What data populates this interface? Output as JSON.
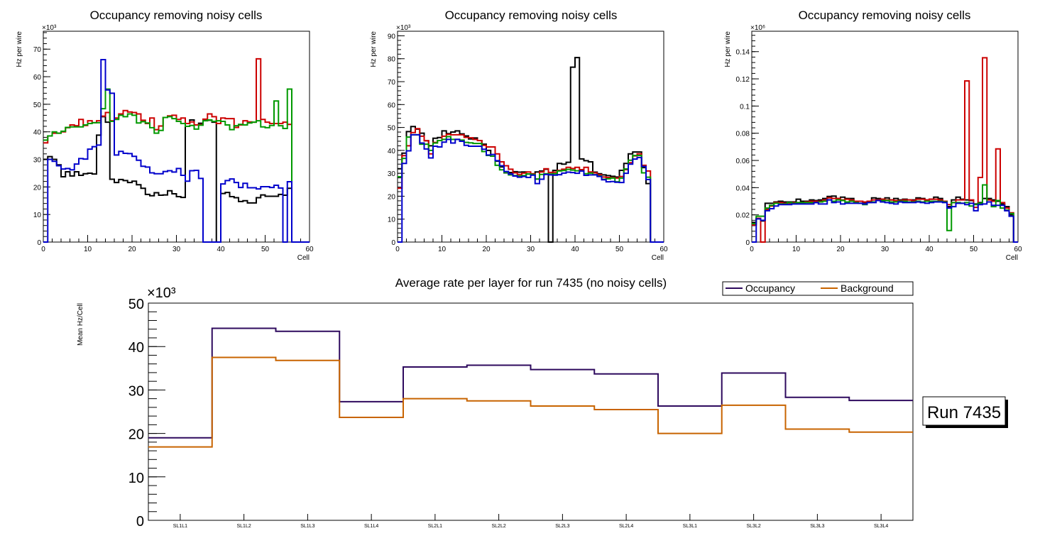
{
  "chart_data": [
    {
      "type": "histogram",
      "title": "Occupancy removing noisy cells",
      "xlabel": "Cell",
      "ylabel": "Hz per wire",
      "y_multiplier": "×10³",
      "xlim": [
        0,
        60
      ],
      "ylim": [
        0,
        76.5
      ],
      "xticks": [
        "0",
        "10",
        "20",
        "30",
        "40",
        "50",
        "60"
      ],
      "yticks": [
        "0",
        "10",
        "20",
        "30",
        "40",
        "50",
        "60",
        "70"
      ],
      "ytick_values": [
        0,
        10,
        20,
        30,
        40,
        50,
        60,
        70
      ],
      "series": [
        {
          "name": "black",
          "color": "#000000",
          "values": [
            30,
            31,
            30,
            28,
            23.7,
            25.5,
            24,
            25.5,
            24.2,
            24.8,
            25,
            24.7,
            38.8,
            45.5,
            43.5,
            22.8,
            21.6,
            22.7,
            22.3,
            21.6,
            22.1,
            20.8,
            19.5,
            17.3,
            16.8,
            17.9,
            17,
            17.1,
            18.6,
            17.5,
            16.5,
            16.2,
            43,
            44.3,
            42.5,
            43.1,
            44.1,
            44.2,
            43.5,
            0,
            17.6,
            18,
            16.5,
            16.1,
            14.7,
            15,
            14.2,
            14.2,
            16.1,
            17.1,
            16.6,
            16.6,
            16.6,
            17.3,
            17,
            19.5,
            0,
            0,
            0,
            0
          ]
        },
        {
          "name": "red",
          "color": "#cc0000",
          "values": [
            36,
            38.5,
            39.5,
            39.5,
            40,
            41.5,
            42.5,
            42.2,
            44.5,
            42.3,
            44,
            43.3,
            44,
            45.7,
            47,
            44,
            45,
            46.5,
            47.7,
            47.2,
            47,
            46.5,
            44.2,
            43,
            45,
            40.8,
            42.1,
            45.2,
            45.8,
            46,
            44.5,
            45,
            43,
            43.6,
            42.5,
            42.6,
            44.6,
            46.5,
            45.5,
            43,
            45,
            44.8,
            44.8,
            41.6,
            42.5,
            44,
            43.6,
            43.5,
            66.5,
            44.5,
            43.5,
            43,
            43,
            43,
            43.5,
            42.7,
            0,
            0,
            0,
            0
          ]
        },
        {
          "name": "green",
          "color": "#009900",
          "values": [
            37,
            38.5,
            40,
            39.5,
            40.2,
            41.6,
            41.8,
            41.8,
            41.8,
            42.5,
            43,
            43.3,
            43.3,
            48.4,
            55.5,
            43.8,
            44.5,
            46,
            45.5,
            46.5,
            46,
            43.2,
            43.7,
            43.2,
            41.5,
            39.5,
            40.5,
            45.2,
            45.5,
            44.8,
            43.8,
            43,
            42,
            42.3,
            41,
            42.4,
            44,
            44.3,
            43.8,
            44,
            43.8,
            42.5,
            40.8,
            42.2,
            42.7,
            42.5,
            43.2,
            43.5,
            44,
            41.8,
            41.5,
            42.3,
            51.2,
            42.2,
            41.2,
            55.5,
            0,
            0,
            0,
            0
          ]
        },
        {
          "name": "blue",
          "color": "#0000cc",
          "values": [
            0,
            30,
            29.3,
            27.7,
            26.5,
            26.7,
            26.2,
            28.3,
            30.3,
            30.1,
            33.7,
            34.6,
            35.2,
            66.2,
            55.2,
            54,
            31.6,
            32.9,
            32.2,
            32.1,
            31.1,
            29.7,
            27.5,
            27.2,
            25.1,
            24.8,
            24.8,
            25.6,
            25.9,
            25.4,
            26.7,
            24.2,
            22.1,
            25.9,
            26,
            23.1,
            0,
            0,
            0,
            0,
            21.1,
            22.3,
            22.9,
            21.6,
            19.8,
            21.3,
            19.7,
            19.7,
            19.3,
            20.1,
            20.1,
            19.8,
            20.6,
            19.6,
            0,
            21.9,
            0,
            0,
            0,
            0
          ]
        }
      ]
    },
    {
      "type": "histogram",
      "title": "Occupancy removing noisy cells",
      "xlabel": "Cell",
      "ylabel": "Hz per wire",
      "y_multiplier": "×10³",
      "xlim": [
        0,
        60
      ],
      "ylim": [
        0,
        92
      ],
      "xticks": [
        "0",
        "10",
        "20",
        "30",
        "40",
        "50",
        "60"
      ],
      "yticks": [
        "0",
        "10",
        "20",
        "30",
        "40",
        "50",
        "60",
        "70",
        "80",
        "90"
      ],
      "ytick_values": [
        0,
        10,
        20,
        30,
        40,
        50,
        60,
        70,
        80,
        90
      ],
      "series": [
        {
          "name": "black",
          "color": "#000000",
          "values": [
            32,
            38.8,
            48.2,
            50.4,
            49.3,
            47.5,
            44.2,
            42,
            45.3,
            45.6,
            48.5,
            47.3,
            48,
            48.5,
            47.2,
            46.3,
            45,
            45.4,
            44.3,
            42.7,
            40,
            37.5,
            35.3,
            32.8,
            30.2,
            30.3,
            30.7,
            30.5,
            30.6,
            29.7,
            29.5,
            30.6,
            31,
            31.8,
            0,
            31.3,
            34.3,
            34,
            34.8,
            76.3,
            80.5,
            36.3,
            35.5,
            35,
            30.5,
            29.8,
            29.3,
            29,
            28.7,
            28.4,
            31.3,
            34.3,
            38.5,
            39.3,
            39.3,
            32.5,
            25.5,
            0,
            0,
            0
          ]
        },
        {
          "name": "red",
          "color": "#cc0000",
          "values": [
            23.5,
            37.7,
            42,
            47.8,
            49.5,
            46.2,
            44.2,
            38.5,
            43.5,
            44.3,
            46.2,
            47,
            46.8,
            46.8,
            46.8,
            45.7,
            45.5,
            44.8,
            44.3,
            42.2,
            41.5,
            41.5,
            38.5,
            35,
            33.3,
            31.8,
            30.2,
            29.5,
            30.1,
            30.6,
            29.8,
            27.5,
            30.6,
            32,
            30.4,
            30.5,
            31.3,
            31.8,
            32.6,
            32.1,
            32.6,
            31.6,
            32.6,
            30.6,
            30.2,
            29.4,
            28.4,
            28.2,
            28.1,
            27.9,
            28.6,
            31.6,
            34.6,
            37.6,
            38.5,
            33.5,
            31,
            0,
            0,
            0
          ]
        },
        {
          "name": "green",
          "color": "#009900",
          "values": [
            28.5,
            36.5,
            45.8,
            46.8,
            46.8,
            42.7,
            42.7,
            40,
            43.2,
            44.3,
            44.8,
            46,
            44.8,
            44.8,
            44.5,
            43.5,
            43.3,
            43,
            43,
            39.5,
            37.8,
            37.5,
            33.5,
            31.5,
            30.3,
            29.3,
            29,
            28.8,
            29,
            29.7,
            29.5,
            27.5,
            29.5,
            29.8,
            29.7,
            29.8,
            31,
            31.2,
            31.7,
            31.4,
            31.1,
            31,
            29.8,
            30.1,
            29.4,
            28.8,
            27.4,
            27.6,
            27.9,
            26.3,
            27.9,
            31.9,
            35.7,
            37.8,
            37.8,
            30.2,
            28.3,
            0,
            0,
            0
          ]
        },
        {
          "name": "blue",
          "color": "#0000cc",
          "values": [
            0,
            34.3,
            39.8,
            46.8,
            46.8,
            43.2,
            40.6,
            36.7,
            41.8,
            41.5,
            43.6,
            44.8,
            43.2,
            44.8,
            44,
            42.2,
            41.8,
            41.8,
            41.8,
            40.5,
            38,
            38.2,
            35.5,
            33.3,
            30.8,
            29.7,
            28.8,
            28.3,
            28.6,
            28.2,
            29.2,
            25.5,
            27.4,
            29.5,
            29.3,
            29.2,
            29.4,
            30.1,
            30.5,
            30.3,
            30,
            31,
            29.1,
            29.3,
            29.3,
            28.6,
            27.2,
            26.3,
            26.4,
            26.1,
            26,
            30,
            34,
            36.2,
            36.9,
            33,
            27.3,
            0,
            0,
            0
          ]
        }
      ]
    },
    {
      "type": "histogram",
      "title": "Occupancy removing noisy cells",
      "xlabel": "Cell",
      "ylabel": "Hz per wire",
      "y_multiplier": "×10⁶",
      "xlim": [
        0,
        60
      ],
      "ylim": [
        0,
        0.155
      ],
      "xticks": [
        "0",
        "10",
        "20",
        "30",
        "40",
        "50",
        "60"
      ],
      "yticks": [
        "0",
        "0.02",
        "0.04",
        "0.06",
        "0.08",
        "0.1",
        "0.12",
        "0.14"
      ],
      "ytick_values": [
        0,
        0.02,
        0.04,
        0.06,
        0.08,
        0.1,
        0.12,
        0.14
      ],
      "series": [
        {
          "name": "black",
          "color": "#000000",
          "values": [
            0.0145,
            0.0175,
            0.0155,
            0.0285,
            0.0285,
            0.0295,
            0.03,
            0.0295,
            0.0295,
            0.0295,
            0.0315,
            0.03,
            0.03,
            0.031,
            0.0305,
            0.031,
            0.032,
            0.0335,
            0.0338,
            0.032,
            0.033,
            0.032,
            0.032,
            0.03,
            0.03,
            0.029,
            0.03,
            0.0325,
            0.032,
            0.0315,
            0.0325,
            0.031,
            0.032,
            0.031,
            0.0315,
            0.031,
            0.031,
            0.0325,
            0.032,
            0.031,
            0.0315,
            0.033,
            0.032,
            0.03,
            0.026,
            0.031,
            0.033,
            0.0315,
            0.031,
            0.0305,
            0.028,
            0.029,
            0.032,
            0.032,
            0.031,
            0.03,
            0.028,
            0.026,
            0.02,
            0
          ]
        },
        {
          "name": "red",
          "color": "#cc0000",
          "values": [
            0.0125,
            0.0175,
            0,
            0.024,
            0.0265,
            0.029,
            0.029,
            0.0285,
            0.0285,
            0.029,
            0.029,
            0.029,
            0.0295,
            0.03,
            0.03,
            0.03,
            0.031,
            0.0325,
            0.032,
            0.032,
            0.031,
            0.0315,
            0.031,
            0.03,
            0.03,
            0.0295,
            0.03,
            0.031,
            0.031,
            0.0315,
            0.031,
            0.031,
            0.0305,
            0.0305,
            0.031,
            0.031,
            0.0305,
            0.0315,
            0.0315,
            0.031,
            0.0315,
            0.0315,
            0.031,
            0.03,
            0.0275,
            0.029,
            0.031,
            0.031,
            0.1185,
            0.031,
            0.0255,
            0.0475,
            0.1355,
            0.031,
            0.03,
            0.0685,
            0.029,
            0.025,
            0.0215,
            0
          ]
        },
        {
          "name": "green",
          "color": "#009900",
          "values": [
            0.0135,
            0.019,
            0.019,
            0.025,
            0.027,
            0.0285,
            0.028,
            0.028,
            0.029,
            0.0285,
            0.029,
            0.029,
            0.029,
            0.029,
            0.029,
            0.0295,
            0.03,
            0.031,
            0.03,
            0.031,
            0.0305,
            0.0295,
            0.03,
            0.029,
            0.0285,
            0.0275,
            0.029,
            0.0295,
            0.0305,
            0.0305,
            0.0305,
            0.0295,
            0.0295,
            0.03,
            0.03,
            0.0295,
            0.0295,
            0.03,
            0.0295,
            0.03,
            0.03,
            0.03,
            0.03,
            0.0295,
            0.0085,
            0.029,
            0.029,
            0.0285,
            0.029,
            0.0265,
            0.0275,
            0.0285,
            0.042,
            0.0295,
            0.026,
            0.0305,
            0.025,
            0.0235,
            0.021,
            0
          ]
        },
        {
          "name": "blue",
          "color": "#0000cc",
          "values": [
            0,
            0.017,
            0.016,
            0.023,
            0.0245,
            0.0265,
            0.0275,
            0.0275,
            0.0275,
            0.028,
            0.028,
            0.028,
            0.028,
            0.028,
            0.029,
            0.028,
            0.028,
            0.031,
            0.029,
            0.0295,
            0.028,
            0.0285,
            0.0285,
            0.0285,
            0.0285,
            0.028,
            0.029,
            0.029,
            0.0305,
            0.0295,
            0.029,
            0.0285,
            0.028,
            0.0295,
            0.029,
            0.029,
            0.029,
            0.0295,
            0.029,
            0.0285,
            0.029,
            0.0295,
            0.0295,
            0.029,
            0.025,
            0.026,
            0.0285,
            0.0285,
            0.0275,
            0.0285,
            0.023,
            0.0275,
            0.028,
            0.0295,
            0.027,
            0.027,
            0.027,
            0.023,
            0.019,
            0
          ]
        }
      ]
    },
    {
      "type": "histogram",
      "title": "Average rate per layer for run 7435 (no noisy cells)",
      "xlabel": "",
      "ylabel": "Mean Hz/Cell",
      "y_multiplier": "×10³",
      "categories": [
        "SL1L1",
        "SL1L2",
        "SL1L3",
        "SL1L4",
        "SL2L1",
        "SL2L2",
        "SL2L3",
        "SL2L4",
        "SL3L1",
        "SL3L2",
        "SL3L3",
        "SL3L4"
      ],
      "ylim": [
        0,
        50
      ],
      "yticks": [
        "0",
        "10",
        "20",
        "30",
        "40",
        "50"
      ],
      "ytick_values": [
        0,
        10,
        20,
        30,
        40,
        50
      ],
      "legend": {
        "position": "top-right",
        "entries": [
          "Occupancy",
          "Background"
        ]
      },
      "series": [
        {
          "name": "Occupancy",
          "color": "#2e0a5e",
          "values": [
            19,
            44.2,
            43.5,
            27.3,
            35.3,
            35.7,
            34.7,
            33.7,
            26.3,
            33.9,
            28.3,
            27.6
          ]
        },
        {
          "name": "Background",
          "color": "#c86400",
          "values": [
            16.9,
            37.5,
            36.8,
            23.7,
            28,
            27.5,
            26.3,
            25.5,
            20,
            26.5,
            21,
            20.3
          ]
        }
      ],
      "annotation": "Run 7435"
    }
  ]
}
